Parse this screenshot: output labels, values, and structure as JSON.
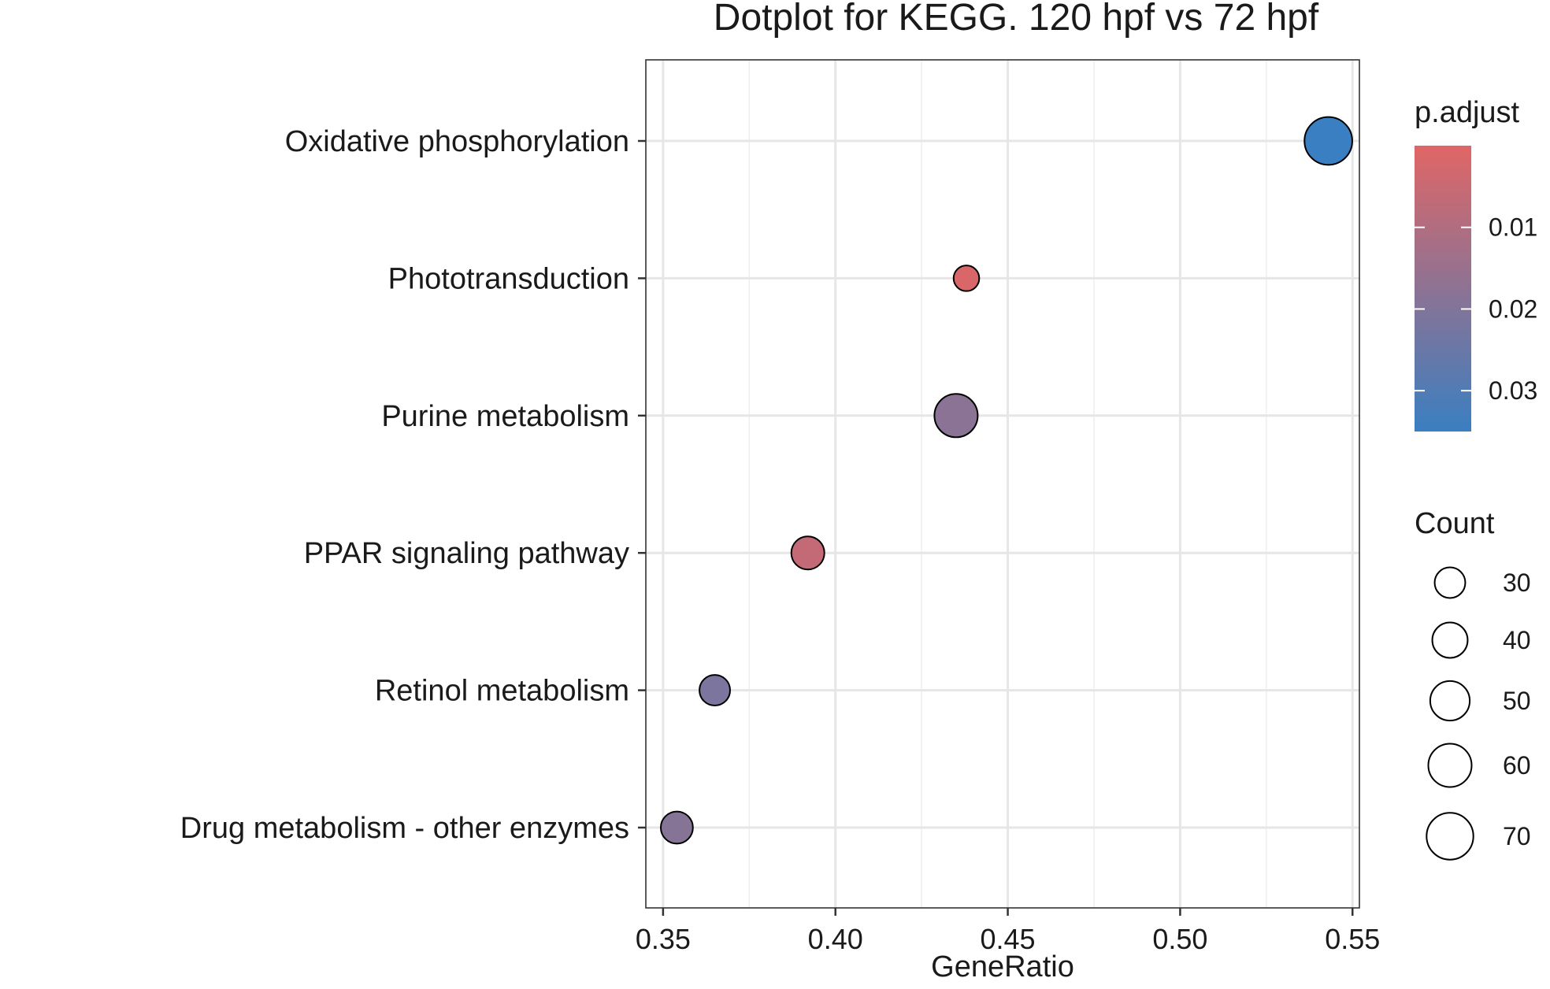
{
  "chart_data": {
    "type": "scatter",
    "title": "Dotplot for KEGG. 120 hpf vs 72 hpf",
    "xlabel": "GeneRatio",
    "ylabel": "",
    "xlim": [
      0.345,
      0.552
    ],
    "x_ticks": [
      0.35,
      0.4,
      0.45,
      0.5,
      0.55
    ],
    "x_tick_labels": [
      "0.35",
      "0.40",
      "0.45",
      "0.50",
      "0.55"
    ],
    "grid": true,
    "legend_placement": "right",
    "categories": [
      "Oxidative phosphorylation",
      "Phototransduction",
      "Purine metabolism",
      "PPAR signaling pathway",
      "Retinol metabolism",
      "Drug metabolism - other enzymes"
    ],
    "points": [
      {
        "category": "Oxidative phosphorylation",
        "gene_ratio": 0.543,
        "count": 73,
        "p_adjust": 0.035
      },
      {
        "category": "Phototransduction",
        "gene_ratio": 0.438,
        "count": 21,
        "p_adjust": 0.0015
      },
      {
        "category": "Purine metabolism",
        "gene_ratio": 0.435,
        "count": 60,
        "p_adjust": 0.018
      },
      {
        "category": "PPAR signaling pathway",
        "gene_ratio": 0.392,
        "count": 35,
        "p_adjust": 0.006
      },
      {
        "category": "Retinol metabolism",
        "gene_ratio": 0.365,
        "count": 30,
        "p_adjust": 0.021
      },
      {
        "category": "Drug metabolism - other enzymes",
        "gene_ratio": 0.354,
        "count": 33,
        "p_adjust": 0.019
      }
    ],
    "color_legend": {
      "title": "p.adjust",
      "min": 0.0,
      "max": 0.035,
      "ticks": [
        0.01,
        0.02,
        0.03
      ],
      "tick_labels": [
        "0.01",
        "0.02",
        "0.03"
      ],
      "low_color": "#E06666",
      "high_color": "#3A7FC1"
    },
    "size_legend": {
      "title": "Count",
      "values": [
        30,
        40,
        50,
        60,
        70
      ],
      "labels": [
        "30",
        "40",
        "50",
        "60",
        "70"
      ]
    }
  }
}
